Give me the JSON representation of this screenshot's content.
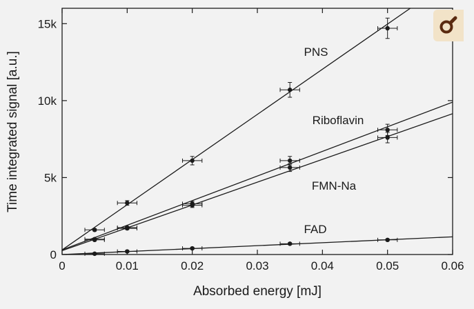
{
  "chart_data": {
    "type": "scatter",
    "xlabel": "Absorbed energy [mJ]",
    "ylabel": "Time integrated signal [a.u.]",
    "xlim": [
      0,
      0.06
    ],
    "ylim": [
      0,
      16000
    ],
    "xticks": [
      0,
      0.01,
      0.02,
      0.03,
      0.04,
      0.05,
      0.06
    ],
    "xtick_labels": [
      "0",
      "0.01",
      "0.02",
      "0.03",
      "0.04",
      "0.05",
      "0.06"
    ],
    "yticks": [
      0,
      5000,
      10000,
      15000
    ],
    "ytick_labels": [
      "0",
      "5k",
      "10k",
      "15k"
    ],
    "grid": false,
    "series": [
      {
        "name": "PNS",
        "x": [
          0.005,
          0.01,
          0.02,
          0.035,
          0.05
        ],
        "y": [
          1600,
          3350,
          6100,
          10700,
          14700
        ],
        "fit": [
          [
            0,
            300
          ],
          [
            0.0535,
            16000
          ]
        ]
      },
      {
        "name": "Riboflavin",
        "x": [
          0.005,
          0.01,
          0.02,
          0.035,
          0.05
        ],
        "y": [
          1000,
          1750,
          3300,
          6100,
          8100
        ],
        "fit": [
          [
            0,
            300
          ],
          [
            0.06,
            9900
          ]
        ]
      },
      {
        "name": "FMN-Na",
        "x": [
          0.005,
          0.01,
          0.02,
          0.035,
          0.05
        ],
        "y": [
          950,
          1700,
          3200,
          5650,
          7600
        ],
        "fit": [
          [
            0,
            250
          ],
          [
            0.06,
            9150
          ]
        ]
      },
      {
        "name": "FAD",
        "x": [
          0.005,
          0.01,
          0.02,
          0.035,
          0.05
        ],
        "y": [
          50,
          200,
          400,
          700,
          950
        ],
        "fit": [
          [
            0,
            0
          ],
          [
            0.06,
            1150
          ]
        ]
      }
    ]
  },
  "ui": {
    "zoom_icon": "magnifier-icon",
    "colors": {
      "background": "#f2f2f2",
      "ink": "#1a1a1a",
      "badge": "#f2e3c8",
      "badge_icon": "#5a2a10"
    }
  }
}
